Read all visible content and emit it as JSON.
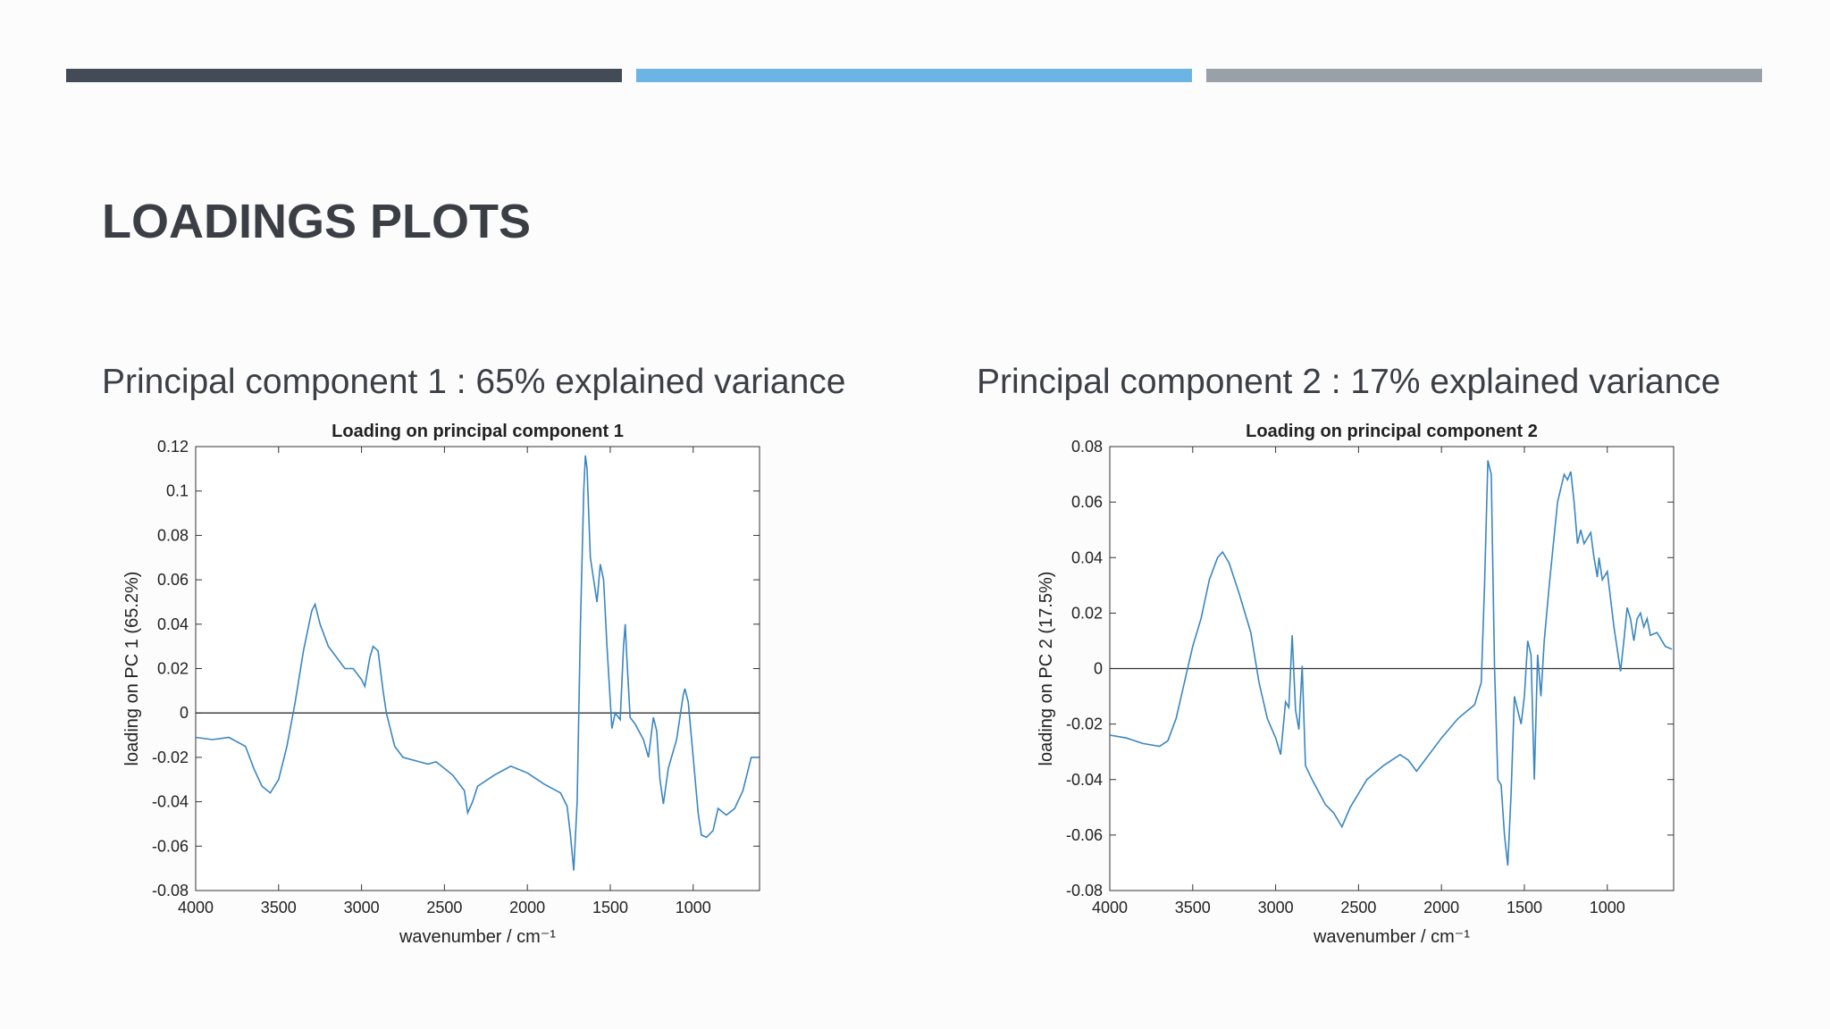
{
  "title": "LOADINGS PLOTS",
  "chart_data": [
    {
      "type": "line",
      "subtitle": "Principal component 1 : 65% explained variance",
      "title": "Loading on principal component 1",
      "xlabel": "wavenumber / cm⁻¹",
      "ylabel": "loading on PC 1 (65.2%)",
      "color": "#3a86c0",
      "xlim": [
        4000,
        600
      ],
      "xticks": [
        4000,
        3500,
        3000,
        2500,
        2000,
        1500,
        1000
      ],
      "ylim": [
        -0.08,
        0.12
      ],
      "yticks": [
        -0.08,
        -0.06,
        -0.04,
        -0.02,
        0,
        0.02,
        0.04,
        0.06,
        0.08,
        0.1,
        0.12
      ],
      "x": [
        4000,
        3900,
        3800,
        3700,
        3650,
        3600,
        3550,
        3500,
        3450,
        3400,
        3350,
        3300,
        3280,
        3250,
        3200,
        3150,
        3100,
        3050,
        3000,
        2980,
        2950,
        2930,
        2900,
        2870,
        2850,
        2800,
        2750,
        2650,
        2600,
        2550,
        2450,
        2380,
        2360,
        2330,
        2300,
        2200,
        2100,
        2000,
        1900,
        1800,
        1760,
        1740,
        1720,
        1700,
        1680,
        1660,
        1650,
        1640,
        1620,
        1600,
        1580,
        1560,
        1540,
        1520,
        1490,
        1470,
        1440,
        1420,
        1410,
        1400,
        1380,
        1350,
        1300,
        1270,
        1240,
        1220,
        1200,
        1180,
        1150,
        1100,
        1060,
        1050,
        1030,
        1000,
        970,
        950,
        920,
        880,
        850,
        800,
        750,
        700,
        650,
        610
      ],
      "values": [
        -0.011,
        -0.012,
        -0.011,
        -0.015,
        -0.025,
        -0.033,
        -0.036,
        -0.03,
        -0.015,
        0.005,
        0.028,
        0.046,
        0.049,
        0.04,
        0.03,
        0.025,
        0.02,
        0.02,
        0.015,
        0.012,
        0.025,
        0.03,
        0.028,
        0.01,
        0,
        -0.015,
        -0.02,
        -0.022,
        -0.023,
        -0.022,
        -0.028,
        -0.035,
        -0.045,
        -0.04,
        -0.033,
        -0.028,
        -0.024,
        -0.027,
        -0.032,
        -0.036,
        -0.042,
        -0.055,
        -0.071,
        -0.04,
        0.04,
        0.1,
        0.116,
        0.11,
        0.07,
        0.06,
        0.05,
        0.067,
        0.06,
        0.03,
        -0.007,
        0,
        -0.003,
        0.03,
        0.04,
        0.025,
        -0.002,
        -0.005,
        -0.012,
        -0.02,
        -0.002,
        -0.008,
        -0.03,
        -0.041,
        -0.025,
        -0.012,
        0.008,
        0.011,
        0.005,
        -0.02,
        -0.045,
        -0.055,
        -0.056,
        -0.053,
        -0.043,
        -0.046,
        -0.043,
        -0.035,
        -0.02,
        -0.02
      ]
    },
    {
      "type": "line",
      "subtitle": "Principal component 2 : 17% explained variance",
      "title": "Loading on principal component 2",
      "xlabel": "wavenumber / cm⁻¹",
      "ylabel": "loading on PC 2 (17.5%)",
      "color": "#3a86c0",
      "xlim": [
        4000,
        600
      ],
      "xticks": [
        4000,
        3500,
        3000,
        2500,
        2000,
        1500,
        1000
      ],
      "ylim": [
        -0.08,
        0.08
      ],
      "yticks": [
        -0.08,
        -0.06,
        -0.04,
        -0.02,
        0,
        0.02,
        0.04,
        0.06,
        0.08
      ],
      "x": [
        4000,
        3900,
        3800,
        3700,
        3650,
        3600,
        3550,
        3500,
        3450,
        3400,
        3350,
        3320,
        3280,
        3220,
        3150,
        3100,
        3050,
        3000,
        2970,
        2940,
        2920,
        2900,
        2880,
        2860,
        2840,
        2820,
        2780,
        2700,
        2650,
        2600,
        2550,
        2450,
        2350,
        2250,
        2200,
        2150,
        2100,
        2000,
        1900,
        1800,
        1760,
        1740,
        1720,
        1700,
        1680,
        1660,
        1640,
        1620,
        1600,
        1580,
        1560,
        1540,
        1520,
        1500,
        1480,
        1460,
        1440,
        1420,
        1400,
        1380,
        1350,
        1300,
        1260,
        1240,
        1220,
        1200,
        1180,
        1160,
        1140,
        1100,
        1080,
        1060,
        1050,
        1030,
        1000,
        980,
        960,
        920,
        900,
        880,
        860,
        840,
        820,
        800,
        780,
        760,
        740,
        700,
        650,
        610
      ],
      "values": [
        -0.024,
        -0.025,
        -0.027,
        -0.028,
        -0.026,
        -0.018,
        -0.005,
        0.008,
        0.018,
        0.032,
        0.04,
        0.042,
        0.038,
        0.027,
        0.013,
        -0.005,
        -0.018,
        -0.025,
        -0.031,
        -0.012,
        -0.014,
        0.012,
        -0.015,
        -0.022,
        0.001,
        -0.035,
        -0.04,
        -0.049,
        -0.052,
        -0.057,
        -0.05,
        -0.04,
        -0.035,
        -0.031,
        -0.033,
        -0.037,
        -0.033,
        -0.025,
        -0.018,
        -0.013,
        -0.005,
        0.03,
        0.075,
        0.07,
        0,
        -0.04,
        -0.042,
        -0.06,
        -0.071,
        -0.045,
        -0.01,
        -0.015,
        -0.02,
        -0.01,
        0.01,
        0.005,
        -0.04,
        0.005,
        -0.01,
        0.01,
        0.03,
        0.06,
        0.07,
        0.068,
        0.071,
        0.06,
        0.045,
        0.05,
        0.045,
        0.049,
        0.04,
        0.033,
        0.04,
        0.032,
        0.035,
        0.025,
        0.015,
        -0.001,
        0.01,
        0.022,
        0.018,
        0.01,
        0.018,
        0.02,
        0.015,
        0.018,
        0.012,
        0.013,
        0.008,
        0.007
      ]
    }
  ]
}
